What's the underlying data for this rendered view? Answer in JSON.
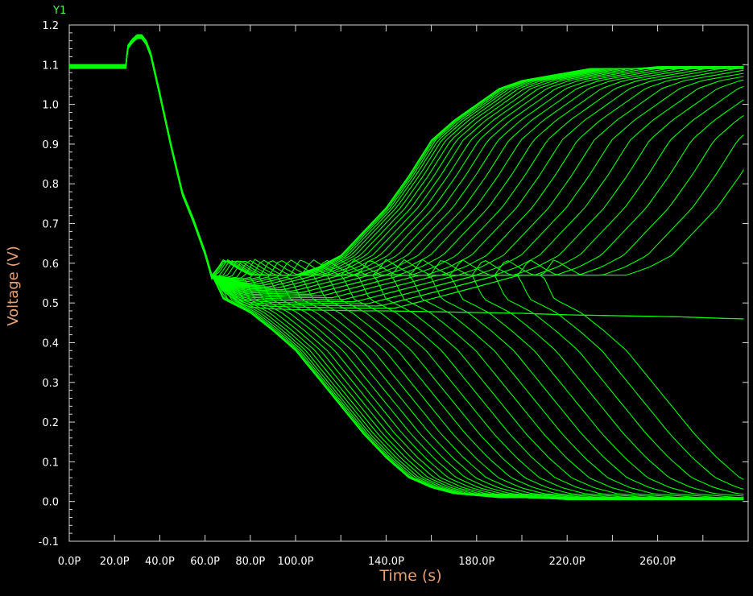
{
  "chart_data": {
    "type": "line",
    "title": "",
    "xlabel": "Time (s)",
    "ylabel": "Voltage (V)",
    "y_axis_tag": "Y1",
    "line_color": "#00ff00",
    "background": "#000000",
    "grid": false,
    "xlim": [
      0,
      300
    ],
    "ylim": [
      -0.1,
      1.2
    ],
    "x_tick_labels": [
      "0.0P",
      "20.0P",
      "40.0P",
      "60.0P",
      "80.0P",
      "100.0P",
      "140.0P",
      "180.0P",
      "220.0P",
      "260.0P"
    ],
    "x_tick_values": [
      0,
      20,
      40,
      60,
      80,
      100,
      140,
      180,
      220,
      260
    ],
    "y_tick_labels": [
      "-0.1",
      "0.0",
      "0.1",
      "0.2",
      "0.3",
      "0.4",
      "0.5",
      "0.6",
      "0.7",
      "0.8",
      "0.9",
      "1.0",
      "1.1",
      "1.2"
    ],
    "y_tick_values": [
      -0.1,
      0.0,
      0.1,
      0.2,
      0.3,
      0.4,
      0.5,
      0.6,
      0.7,
      0.8,
      0.9,
      1.0,
      1.1,
      1.2
    ],
    "series_count": 60,
    "series_common": {
      "x": [
        0,
        25,
        25.5,
        26,
        28,
        30,
        32,
        34,
        36,
        40,
        45,
        50,
        55,
        60,
        63
      ],
      "y": [
        1.1,
        1.1,
        1.13,
        1.15,
        1.165,
        1.175,
        1.175,
        1.16,
        1.13,
        1.03,
        0.9,
        0.78,
        0.71,
        0.63,
        0.57
      ]
    },
    "series_envelopes": {
      "x": [
        63,
        68,
        75,
        80,
        90,
        100,
        110,
        120,
        130,
        140,
        150,
        160,
        170,
        180,
        190,
        200,
        210,
        220,
        230,
        240,
        250,
        260,
        270,
        280,
        290,
        298
      ],
      "fast_high": [
        0.57,
        0.61,
        0.585,
        0.57,
        0.57,
        0.57,
        0.59,
        0.62,
        0.68,
        0.74,
        0.82,
        0.91,
        0.96,
        1.0,
        1.04,
        1.06,
        1.07,
        1.08,
        1.09,
        1.09,
        1.09,
        1.095,
        1.095,
        1.095,
        1.095,
        1.095
      ],
      "fast_low": [
        0.57,
        0.51,
        0.49,
        0.475,
        0.43,
        0.38,
        0.31,
        0.24,
        0.17,
        0.11,
        0.06,
        0.035,
        0.02,
        0.015,
        0.01,
        0.01,
        0.008,
        0.005,
        0.005,
        0.005,
        0.005,
        0.005,
        0.005,
        0.005,
        0.005,
        0.005
      ],
      "meta_stable": [
        0.57,
        0.53,
        0.5,
        0.49,
        0.485,
        0.483,
        0.482,
        0.481,
        0.48,
        0.48,
        0.479,
        0.478,
        0.477,
        0.476,
        0.475,
        0.474,
        0.472,
        0.47,
        0.469,
        0.468,
        0.467,
        0.466,
        0.465,
        0.463,
        0.461,
        0.46
      ]
    }
  }
}
